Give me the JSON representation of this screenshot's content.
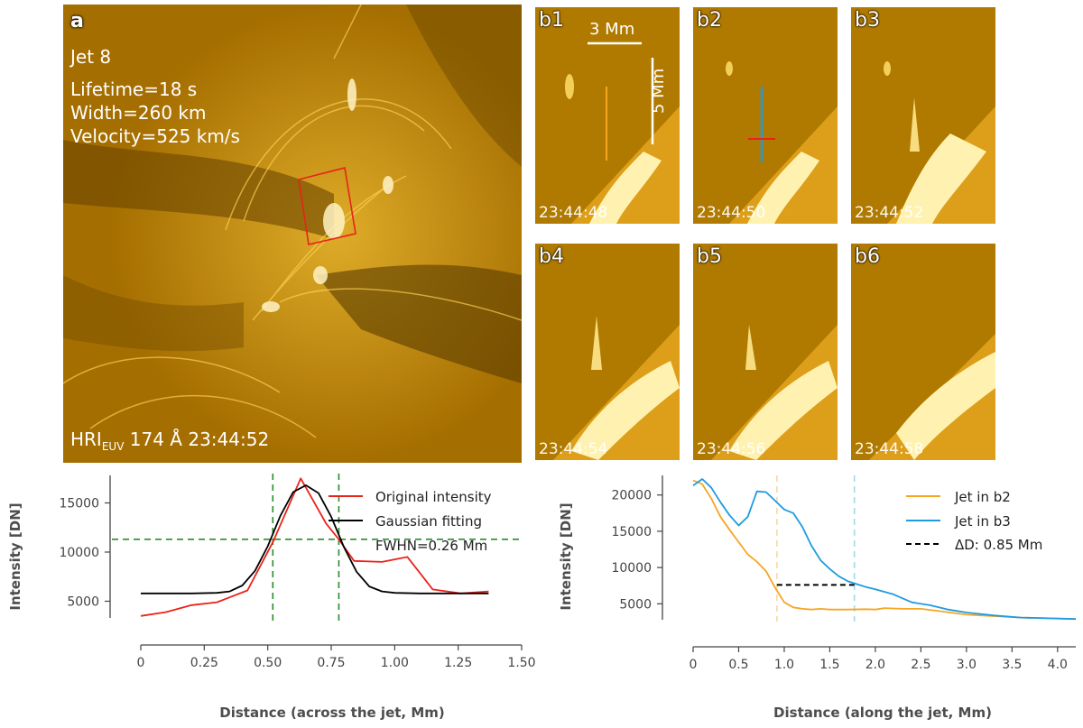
{
  "colors": {
    "bg": "#b07a00",
    "bright": "#fff6cc",
    "orange": "#f5a623",
    "blue": "#1f9be0",
    "red": "#e8231a",
    "green": "#2a8a2a"
  },
  "panel_a": {
    "label": "a",
    "jet": "Jet 8",
    "lifetime": "Lifetime=18 s",
    "width": "Width=260 km",
    "velocity": "Velocity=525 km/s",
    "instrument_main": "HRI",
    "instrument_sub": "EUV",
    "instrument_rest": " 174 Å 23:44:52"
  },
  "scalebar": {
    "horizontal": "3 Mm",
    "vertical": "5 Mm"
  },
  "subpanels": [
    {
      "label": "b1",
      "time": "23:44:48"
    },
    {
      "label": "b2",
      "time": "23:44:50"
    },
    {
      "label": "b3",
      "time": "23:44:52"
    },
    {
      "label": "b4",
      "time": "23:44:54"
    },
    {
      "label": "b5",
      "time": "23:44:56"
    },
    {
      "label": "b6",
      "time": "23:44:58"
    }
  ],
  "chart_data": [
    {
      "type": "line",
      "xlabel": "Distance (across the jet, Mm)",
      "ylabel": "Intensity [DN]",
      "xlim": [
        0,
        1.5
      ],
      "ylim": [
        3300,
        17800
      ],
      "xticks": [
        0,
        0.25,
        0.5,
        0.75,
        1.0,
        1.25,
        1.5
      ],
      "xtick_labels": [
        "0",
        "0.25",
        "0.50",
        "0.75",
        "1.00",
        "1.25",
        "1.50"
      ],
      "yticks": [
        5000,
        10000,
        15000
      ],
      "ytick_labels": [
        "5000",
        "10000",
        "15000"
      ],
      "legend": {
        "position": "top-right",
        "fwhm_text": "FWHN=0.26 Mm"
      },
      "series": [
        {
          "name": "Original intensity",
          "color": "#e8231a",
          "x": [
            0,
            0.1,
            0.2,
            0.3,
            0.42,
            0.52,
            0.63,
            0.73,
            0.78,
            0.84,
            0.95,
            1.05,
            1.15,
            1.26,
            1.37
          ],
          "y": [
            3500,
            3900,
            4600,
            4900,
            6100,
            11000,
            17500,
            12900,
            11300,
            9100,
            9000,
            9500,
            6200,
            5800,
            6000
          ]
        },
        {
          "name": "Gaussian fitting",
          "color": "#000000",
          "x": [
            0,
            0.2,
            0.3,
            0.35,
            0.4,
            0.45,
            0.5,
            0.55,
            0.6,
            0.65,
            0.7,
            0.75,
            0.8,
            0.85,
            0.9,
            0.95,
            1.0,
            1.1,
            1.37
          ],
          "y": [
            5800,
            5800,
            5850,
            6000,
            6600,
            8100,
            10600,
            13700,
            16100,
            16800,
            16000,
            13600,
            10500,
            8000,
            6500,
            6000,
            5850,
            5800,
            5800
          ]
        }
      ],
      "guides": {
        "vlines": [
          0.52,
          0.78
        ],
        "hline": 11300
      }
    },
    {
      "type": "line",
      "xlabel": "Distance (along the jet, Mm)",
      "ylabel": "Intensity [DN]",
      "xlim": [
        0,
        4.2
      ],
      "ylim": [
        2800,
        22700
      ],
      "xticks": [
        0,
        0.5,
        1.0,
        1.5,
        2.0,
        2.5,
        3.0,
        3.5,
        4.0
      ],
      "xtick_labels": [
        "0",
        "0.5",
        "1.0",
        "1.5",
        "2.0",
        "2.5",
        "3.0",
        "3.5",
        "4.0"
      ],
      "yticks": [
        5000,
        10000,
        15000,
        20000
      ],
      "ytick_labels": [
        "5000",
        "10000",
        "15000",
        "20000"
      ],
      "legend": {
        "position": "top-right",
        "delta_text": "ΔD: 0.85 Mm"
      },
      "series": [
        {
          "name": "Jet in b2",
          "color": "#f5a623",
          "x": [
            0,
            0.1,
            0.2,
            0.3,
            0.4,
            0.5,
            0.6,
            0.7,
            0.8,
            0.9,
            1.0,
            1.1,
            1.2,
            1.3,
            1.4,
            1.5,
            1.7,
            1.9,
            2.0,
            2.1,
            2.3,
            2.5,
            2.7,
            3.0,
            3.3,
            3.6,
            3.9,
            4.2
          ],
          "y": [
            22000,
            21500,
            19500,
            17000,
            15200,
            13500,
            11800,
            10800,
            9500,
            7200,
            5200,
            4500,
            4300,
            4200,
            4300,
            4200,
            4200,
            4250,
            4200,
            4400,
            4300,
            4300,
            4000,
            3500,
            3300,
            3100,
            3000,
            2900
          ]
        },
        {
          "name": "Jet in b3",
          "color": "#1f9be0",
          "x": [
            0,
            0.1,
            0.2,
            0.3,
            0.4,
            0.5,
            0.6,
            0.7,
            0.8,
            0.9,
            1.0,
            1.1,
            1.2,
            1.3,
            1.4,
            1.5,
            1.6,
            1.7,
            1.8,
            1.9,
            2.0,
            2.2,
            2.4,
            2.6,
            2.8,
            3.0,
            3.3,
            3.6,
            3.9,
            4.2
          ],
          "y": [
            21300,
            22200,
            21000,
            19000,
            17200,
            15800,
            17000,
            20500,
            20400,
            19200,
            18000,
            17500,
            15600,
            13000,
            11000,
            9800,
            8800,
            8100,
            7700,
            7300,
            7000,
            6300,
            5200,
            4800,
            4200,
            3800,
            3400,
            3100,
            3000,
            2900
          ]
        }
      ],
      "guides": {
        "vlines": [
          0.92,
          1.77
        ],
        "delta_y": 7600
      }
    }
  ]
}
